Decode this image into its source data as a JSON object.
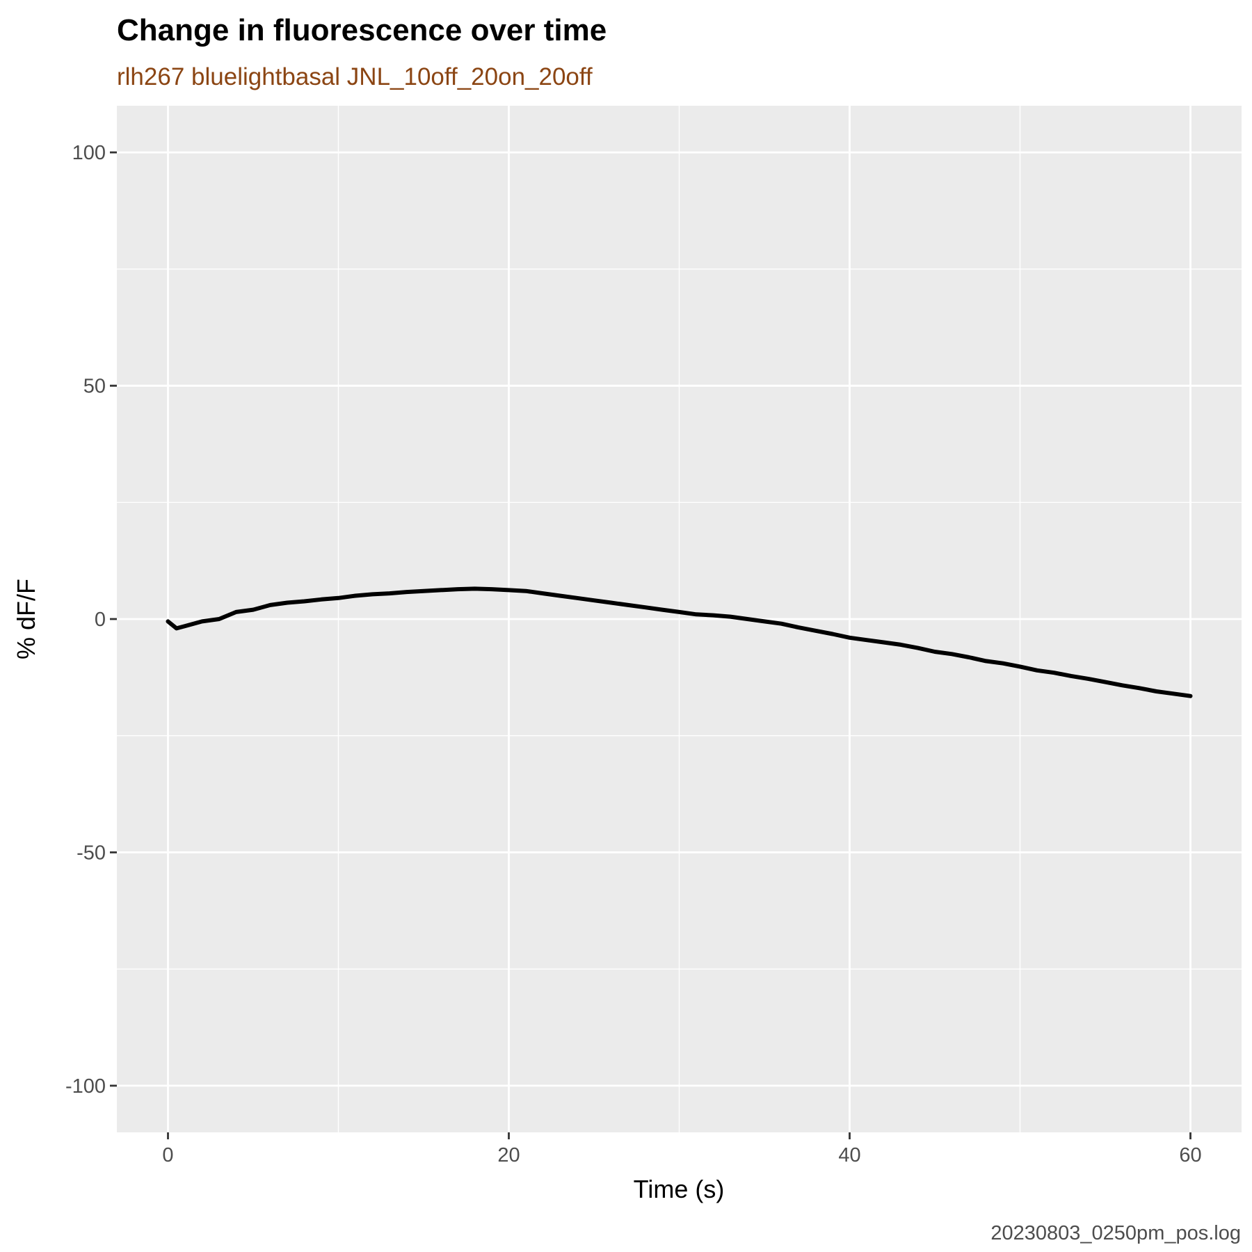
{
  "chart_data": {
    "type": "line",
    "title": "Change in fluorescence over time",
    "subtitle": "rlh267 bluelightbasal JNL_10off_20on_20off",
    "caption": "20230803_0250pm_pos.log",
    "xlabel": "Time (s)",
    "ylabel": "% dF/F",
    "xlim": [
      -3,
      63
    ],
    "ylim": [
      -110,
      110
    ],
    "x_ticks": [
      0,
      20,
      40,
      60
    ],
    "x_tick_labels": [
      "0",
      "20",
      "40",
      "60"
    ],
    "x_minor_ticks": [
      10,
      30,
      50
    ],
    "y_ticks": [
      -100,
      -50,
      0,
      50,
      100
    ],
    "y_tick_labels": [
      "-100",
      "-50",
      "0",
      "50",
      "100"
    ],
    "y_minor_ticks": [
      -75,
      -25,
      25,
      75
    ],
    "grid": true,
    "background": "#EBEBEB",
    "line_color": "#000000",
    "subtitle_color": "#8B4513",
    "series": [
      {
        "x": [
          0,
          0.5,
          1,
          2,
          3,
          4,
          5,
          6,
          7,
          8,
          9,
          10,
          11,
          12,
          13,
          14,
          15,
          16,
          17,
          18,
          19,
          20,
          21,
          22,
          23,
          24,
          25,
          26,
          27,
          28,
          29,
          30,
          31,
          32,
          33,
          34,
          35,
          36,
          37,
          38,
          39,
          40,
          41,
          42,
          43,
          44,
          45,
          46,
          47,
          48,
          49,
          50,
          51,
          52,
          53,
          54,
          55,
          56,
          57,
          58,
          59,
          60
        ],
        "y": [
          -0.5,
          -2,
          -1.5,
          -0.5,
          0,
          1.5,
          2,
          3,
          3.5,
          3.8,
          4.2,
          4.5,
          5,
          5.3,
          5.5,
          5.8,
          6,
          6.2,
          6.4,
          6.5,
          6.4,
          6.2,
          6,
          5.5,
          5,
          4.5,
          4,
          3.5,
          3,
          2.5,
          2,
          1.5,
          1,
          0.8,
          0.5,
          0,
          -0.5,
          -1,
          -1.8,
          -2.5,
          -3.2,
          -4,
          -4.5,
          -5,
          -5.5,
          -6.2,
          -7,
          -7.5,
          -8.2,
          -9,
          -9.5,
          -10.2,
          -11,
          -11.5,
          -12.2,
          -12.8,
          -13.5,
          -14.2,
          -14.8,
          -15.5,
          -16,
          -16.5
        ]
      }
    ]
  }
}
